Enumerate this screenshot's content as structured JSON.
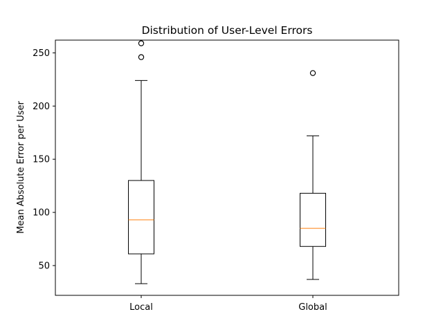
{
  "chart_data": {
    "type": "box",
    "title": "Distribution of User-Level Errors",
    "xlabel": "",
    "ylabel": "Mean Absolute Error per User",
    "categories": [
      "Local",
      "Global"
    ],
    "ylim": [
      22,
      262
    ],
    "yticks": [
      50,
      100,
      150,
      200,
      250
    ],
    "grid": false,
    "boxes": [
      {
        "category": "Local",
        "whisker_low": 33,
        "q1": 61,
        "median": 93,
        "q3": 130,
        "whisker_high": 224,
        "outliers": [
          246,
          259
        ]
      },
      {
        "category": "Global",
        "whisker_low": 37,
        "q1": 68,
        "median": 85,
        "q3": 118,
        "whisker_high": 172,
        "outliers": [
          231
        ]
      }
    ],
    "colors": {
      "box": "#000000",
      "median": "#ff7f0e",
      "outlier": "#000000"
    }
  }
}
